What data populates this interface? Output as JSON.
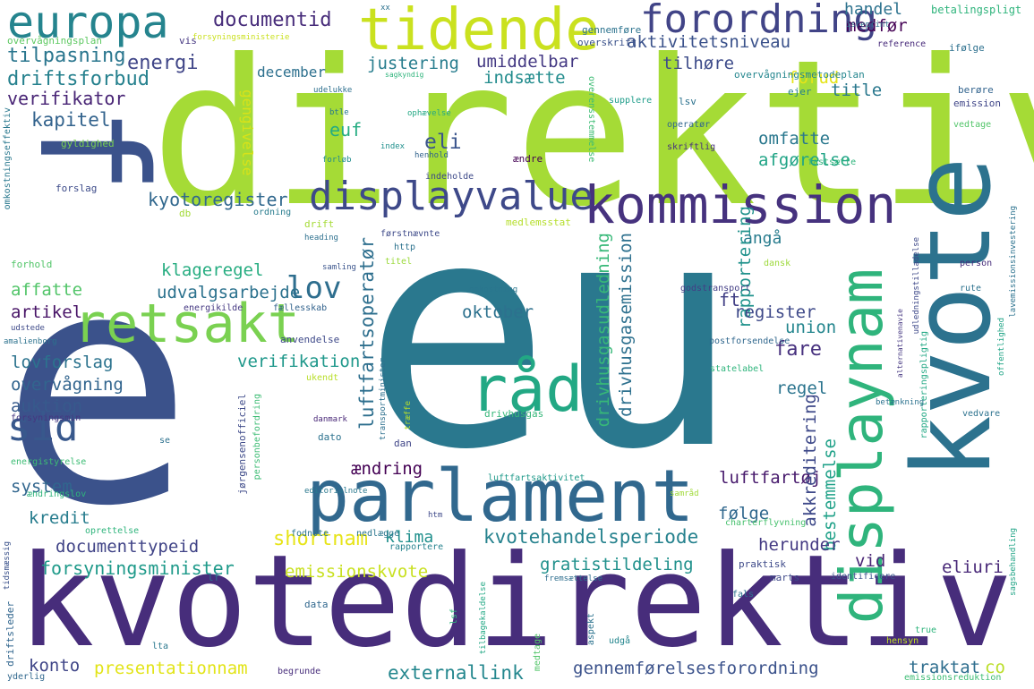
{
  "words": [
    {
      "text": "direktiv",
      "color": "#a5db36"
    },
    {
      "text": "eu",
      "color": "#2a788e"
    },
    {
      "text": "e",
      "color": "#3b528b"
    },
    {
      "text": "f",
      "color": "#3b528b"
    },
    {
      "text": "kvotedirektiv",
      "color": "#472d7b"
    },
    {
      "text": "kvote",
      "color": "#2c728e"
    },
    {
      "text": "parlament",
      "color": "#31688e"
    },
    {
      "text": "displaynam",
      "color": "#2fb47c"
    },
    {
      "text": "kommission",
      "color": "#46327e"
    },
    {
      "text": "retsakt",
      "color": "#7ad151"
    },
    {
      "text": "tidende",
      "color": "#cae11f"
    },
    {
      "text": "europa",
      "color": "#25848e"
    },
    {
      "text": "råd",
      "color": "#22a884"
    },
    {
      "text": "displayvalue",
      "color": "#3e4989"
    },
    {
      "text": "forordning",
      "color": "#414487"
    },
    {
      "text": "sid",
      "color": "#38588c"
    },
    {
      "text": "lov",
      "color": "#2e6e8e"
    },
    {
      "text": "documentid",
      "color": "#472c7a"
    },
    {
      "text": "handel",
      "color": "#2c728e"
    },
    {
      "text": "tilpasning",
      "color": "#2a768e"
    },
    {
      "text": "energi",
      "color": "#404688"
    },
    {
      "text": "driftsforbud",
      "color": "#26818e"
    },
    {
      "text": "verifikator",
      "color": "#482475"
    },
    {
      "text": "kapitel",
      "color": "#33638d"
    },
    {
      "text": "aktivitetsniveau",
      "color": "#3b528b"
    },
    {
      "text": "justering",
      "color": "#287d8e"
    },
    {
      "text": "umiddelbar",
      "color": "#443983"
    },
    {
      "text": "indsætte",
      "color": "#228c8d"
    },
    {
      "text": "december",
      "color": "#2d708e"
    },
    {
      "text": "tilhøre",
      "color": "#3e4c8a"
    },
    {
      "text": "forud",
      "color": "#e5e419"
    },
    {
      "text": "title",
      "color": "#2a788e"
    },
    {
      "text": "medfør",
      "color": "#440154"
    },
    {
      "text": "gengivelse",
      "color": "#d8e219"
    },
    {
      "text": "omfatte",
      "color": "#2a788e"
    },
    {
      "text": "euf",
      "color": "#25ac82"
    },
    {
      "text": "afgørelse",
      "color": "#20a486"
    },
    {
      "text": "eli",
      "color": "#3a548c"
    },
    {
      "text": "kyotoregister",
      "color": "#31688e"
    },
    {
      "text": "angå",
      "color": "#287c8e"
    },
    {
      "text": "rapportering",
      "color": "#20928c"
    },
    {
      "text": "klageregel",
      "color": "#27ad81"
    },
    {
      "text": "affatte",
      "color": "#52c569"
    },
    {
      "text": "udvalgsarbejde",
      "color": "#2c728e"
    },
    {
      "text": "luftfartsoperatør",
      "color": "#2e6f8e"
    },
    {
      "text": "artikel",
      "color": "#481467"
    },
    {
      "text": "drivhusgasudledning",
      "color": "#37b878"
    },
    {
      "text": "drivhusgasemission",
      "color": "#2d708e"
    },
    {
      "text": "oktober",
      "color": "#2d718e"
    },
    {
      "text": "ft",
      "color": "#424086"
    },
    {
      "text": "register",
      "color": "#3e4989"
    },
    {
      "text": "union",
      "color": "#24868e"
    },
    {
      "text": "fare",
      "color": "#46307e"
    },
    {
      "text": "regel",
      "color": "#2b748e"
    },
    {
      "text": "lovforslag",
      "color": "#2c738e"
    },
    {
      "text": "verifikation",
      "color": "#1f988b"
    },
    {
      "text": "overvågning",
      "color": "#32658e"
    },
    {
      "text": "auktion",
      "color": "#375a8c"
    },
    {
      "text": "ændring",
      "color": "#440154"
    },
    {
      "text": "luftfartøj",
      "color": "#481b6d"
    },
    {
      "text": "akkreditering",
      "color": "#3e4989"
    },
    {
      "text": "bestemmelse",
      "color": "#1fa188"
    },
    {
      "text": "system",
      "color": "#31668e"
    },
    {
      "text": "kredit",
      "color": "#287d8e"
    },
    {
      "text": "følge",
      "color": "#31688e"
    },
    {
      "text": "documenttypeid",
      "color": "#414487"
    },
    {
      "text": "shortnam",
      "color": "#e7e419"
    },
    {
      "text": "klima",
      "color": "#21908d"
    },
    {
      "text": "kvotehandelsperiode",
      "color": "#26828e"
    },
    {
      "text": "herunder",
      "color": "#443a83"
    },
    {
      "text": "forsyningsminister",
      "color": "#1f9a8a"
    },
    {
      "text": "emissionskvote",
      "color": "#c8e020"
    },
    {
      "text": "gratistildeling",
      "color": "#21918c"
    },
    {
      "text": "vid",
      "color": "#482475"
    },
    {
      "text": "eliuri",
      "color": "#482878"
    },
    {
      "text": "konto",
      "color": "#404688"
    },
    {
      "text": "presentationnam",
      "color": "#e2e418"
    },
    {
      "text": "externallink",
      "color": "#24878e"
    },
    {
      "text": "gennemførelsesforordning",
      "color": "#3b528b"
    },
    {
      "text": "traktat",
      "color": "#2e6e8e"
    },
    {
      "text": "co",
      "color": "#bade28"
    },
    {
      "text": "betalingspligt",
      "color": "#2fb47c"
    },
    {
      "text": "overvågningsplan",
      "color": "#5ec962"
    },
    {
      "text": "vis",
      "color": "#453781"
    },
    {
      "text": "overskrift",
      "color": "#3b528b"
    },
    {
      "text": "gennemføre",
      "color": "#2c738e"
    },
    {
      "text": "reference",
      "color": "#472a7a"
    },
    {
      "text": "ifølge",
      "color": "#2d708e"
    },
    {
      "text": "berøre",
      "color": "#32648e"
    },
    {
      "text": "emission",
      "color": "#404688"
    },
    {
      "text": "overvågningsmetodeplan",
      "color": "#24868e"
    },
    {
      "text": "ejer",
      "color": "#27808e"
    },
    {
      "text": "supplere",
      "color": "#1e9c89"
    },
    {
      "text": "lsv",
      "color": "#2c728e"
    },
    {
      "text": "vedtage",
      "color": "#52c569"
    },
    {
      "text": "operatør",
      "color": "#31678e"
    },
    {
      "text": "skriftlig",
      "color": "#46307e"
    },
    {
      "text": "ophævelse",
      "color": "#22a884"
    },
    {
      "text": "overensstemmelse",
      "color": "#3dbc74"
    },
    {
      "text": "udelukke",
      "color": "#2d708e"
    },
    {
      "text": "btle",
      "color": "#2a778e"
    },
    {
      "text": "index",
      "color": "#21908d"
    },
    {
      "text": "henhold",
      "color": "#33638d"
    },
    {
      "text": "ændre",
      "color": "#440154"
    },
    {
      "text": "indeholde",
      "color": "#3e4a89"
    },
    {
      "text": "fastsætte",
      "color": "#2fb47c"
    },
    {
      "text": "forløb",
      "color": "#228d8d"
    },
    {
      "text": "gyldighed",
      "color": "#7ad151"
    },
    {
      "text": "forslag",
      "color": "#3e4c8a"
    },
    {
      "text": "omkostningseffektiv",
      "color": "#2a788e"
    },
    {
      "text": "db",
      "color": "#a2da37"
    },
    {
      "text": "ordning",
      "color": "#287c8e"
    },
    {
      "text": "drift",
      "color": "#a5db36"
    },
    {
      "text": "medlemsstat",
      "color": "#b5de2b"
    },
    {
      "text": "heading",
      "color": "#2d708e"
    },
    {
      "text": "førstnævnte",
      "color": "#3e4a89"
    },
    {
      "text": "http",
      "color": "#2c728e"
    },
    {
      "text": "titel",
      "color": "#9bd93c"
    },
    {
      "text": "samling",
      "color": "#3a548c"
    },
    {
      "text": "dansk",
      "color": "#9dd93b"
    },
    {
      "text": "omkostning",
      "color": "#2a768e"
    },
    {
      "text": "godstransport",
      "color": "#433e85"
    },
    {
      "text": "forhold",
      "color": "#52c569"
    },
    {
      "text": "udstede",
      "color": "#3e4a89"
    },
    {
      "text": "amalienborg",
      "color": "#2c728e"
    },
    {
      "text": "energikilde",
      "color": "#453882"
    },
    {
      "text": "fællesskab",
      "color": "#33638d"
    },
    {
      "text": "anvendelse",
      "color": "#3e4989"
    },
    {
      "text": "postforsendelse",
      "color": "#31688e"
    },
    {
      "text": "statelabel",
      "color": "#2fb47c"
    },
    {
      "text": "ukendt",
      "color": "#b8de29"
    },
    {
      "text": "transportminister",
      "color": "#2d708e"
    },
    {
      "text": "drivhusgas",
      "color": "#35b779"
    },
    {
      "text": "forsyningsmin",
      "color": "#453781"
    },
    {
      "text": "danmark",
      "color": "#482777"
    },
    {
      "text": "dato",
      "color": "#2c728e"
    },
    {
      "text": "dan",
      "color": "#404688"
    },
    {
      "text": "se",
      "color": "#2d718e"
    },
    {
      "text": "personbefordring",
      "color": "#3dbc74"
    },
    {
      "text": "jørgensenofficiel",
      "color": "#3e4a89"
    },
    {
      "text": "energistyrelse",
      "color": "#3dbc74"
    },
    {
      "text": "ændringslov",
      "color": "#2fb47c"
    },
    {
      "text": "editorialnote",
      "color": "#2a788e"
    },
    {
      "text": "luftfartsaktivitet",
      "color": "#1f9a8a"
    },
    {
      "text": "samråd",
      "color": "#a0da39"
    },
    {
      "text": "charterflyvning",
      "color": "#48c16e"
    },
    {
      "text": "htm",
      "color": "#3e4989"
    },
    {
      "text": "fodnote",
      "color": "#2b748e"
    },
    {
      "text": "nedlægge",
      "color": "#2a768e"
    },
    {
      "text": "rapportere",
      "color": "#26828e"
    },
    {
      "text": "oprettelse",
      "color": "#2fb47c"
    },
    {
      "text": "tidsmæssig",
      "color": "#3b528b"
    },
    {
      "text": "driftsleder",
      "color": "#31668e"
    },
    {
      "text": "lf",
      "color": "#2c728e"
    },
    {
      "text": "lta",
      "color": "#2a788e"
    },
    {
      "text": "data",
      "color": "#31688e"
    },
    {
      "text": "fremsættelse",
      "color": "#2e6e8e"
    },
    {
      "text": "tilbagekaldelse",
      "color": "#22a884"
    },
    {
      "text": "aspekt",
      "color": "#2c728e"
    },
    {
      "text": "udgå",
      "color": "#24868e"
    },
    {
      "text": "medtage",
      "color": "#52c569"
    },
    {
      "text": "marts",
      "color": "#3e4989"
    },
    {
      "text": "praktisk",
      "color": "#3e4a89"
    },
    {
      "text": "identificere",
      "color": "#3b528b"
    },
    {
      "text": "fals",
      "color": "#2c728e"
    },
    {
      "text": "hensyn",
      "color": "#c2df23"
    },
    {
      "text": "true",
      "color": "#2fb47c"
    },
    {
      "text": "begrunde",
      "color": "#472d7b"
    },
    {
      "text": "lsf",
      "color": "#2fb47c"
    },
    {
      "text": "yderlig",
      "color": "#31688e"
    },
    {
      "text": "emissionsreduktion",
      "color": "#3dbc74"
    },
    {
      "text": "sagsbehandling",
      "color": "#20a486"
    },
    {
      "text": "vedvare",
      "color": "#2c728e"
    },
    {
      "text": "udledningstilladelse",
      "color": "#3e4989"
    },
    {
      "text": "lavemissionsinvestering",
      "color": "#2c728e"
    },
    {
      "text": "offentlighed",
      "color": "#20a486"
    },
    {
      "text": "rapporteringspligtig",
      "color": "#22a884"
    },
    {
      "text": "betænkning",
      "color": "#2c728e"
    },
    {
      "text": "alternativenavie",
      "color": "#453781"
    },
    {
      "text": "rute",
      "color": "#2c728e"
    },
    {
      "text": "person",
      "color": "#472d7b"
    },
    {
      "text": "isreprint",
      "color": "#2c728e"
    },
    {
      "text": "sagkyndig",
      "color": "#2fb47c"
    },
    {
      "text": "træffe",
      "color": "#b5de2b"
    },
    {
      "text": "xx",
      "color": "#2c728e"
    },
    {
      "text": "forsyningsministerie",
      "color": "#cae11f"
    }
  ]
}
